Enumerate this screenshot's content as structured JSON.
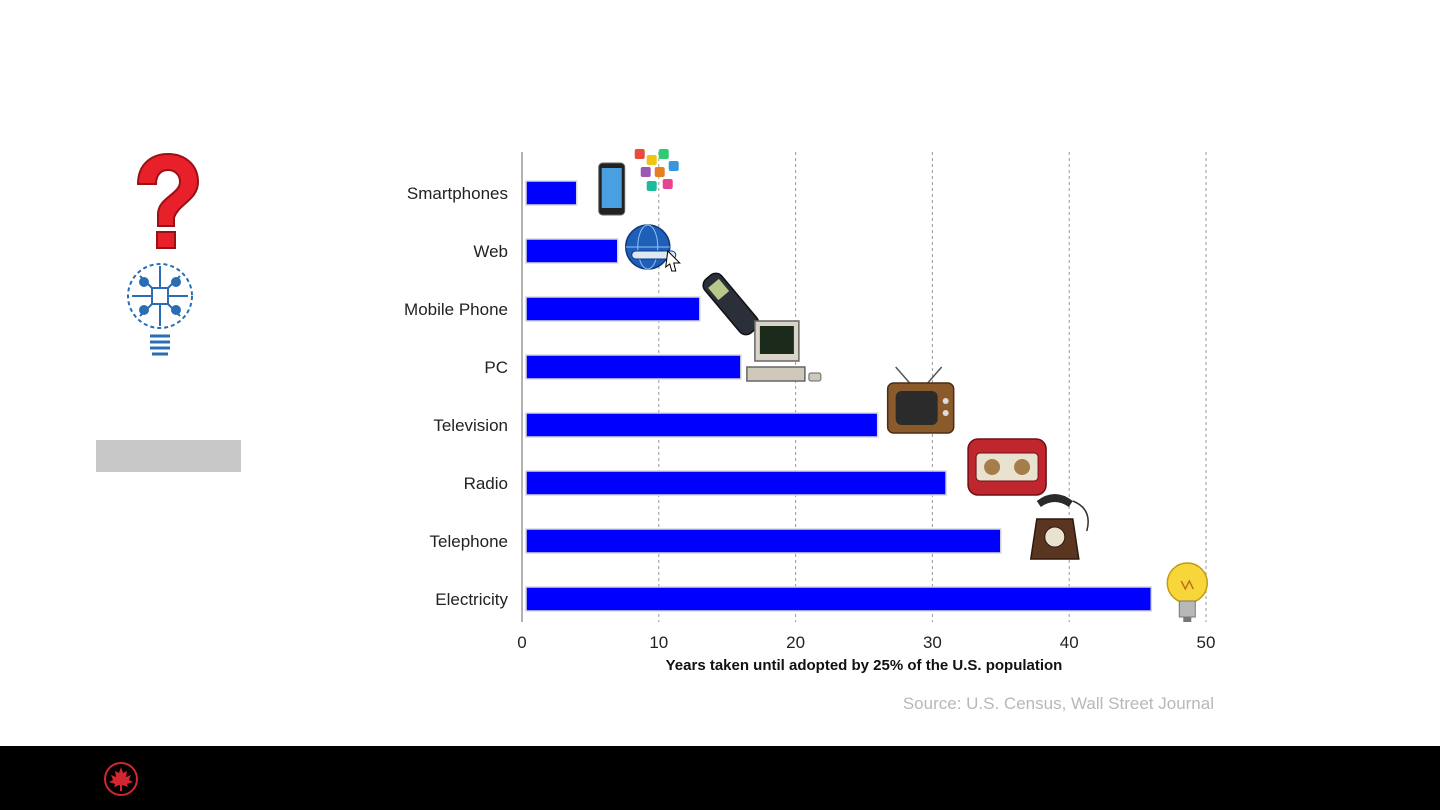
{
  "chart_data": {
    "type": "bar",
    "orientation": "horizontal",
    "categories": [
      "Smartphones",
      "Web",
      "Mobile Phone",
      "PC",
      "Television",
      "Radio",
      "Telephone",
      "Electricity"
    ],
    "values": [
      4,
      7,
      13,
      16,
      26,
      31,
      35,
      46
    ],
    "xlabel": "Years taken until adopted by 25% of the U.S. population",
    "xlim": [
      0,
      50
    ],
    "xticks": [
      0,
      10,
      20,
      30,
      40,
      50
    ],
    "grid": "vertical dashed",
    "bar_color": "#0000ff",
    "source": "Source: U.S. Census, Wall Street Journal"
  },
  "colors": {
    "question_mark": "#e8202a",
    "bulb": "#2a6db5",
    "footer": "#000000",
    "logo": "#d22630",
    "gray_box": "#c8c8c8"
  },
  "icons": {
    "left": [
      "question-mark-icon",
      "circuit-lightbulb-icon"
    ],
    "footer": "maple-leaf-logo-icon",
    "bars": [
      "smartphone-icon",
      "globe-icon",
      "mobile-phone-icon",
      "computer-icon",
      "television-icon",
      "radio-icon",
      "rotary-telephone-icon",
      "light-bulb-icon"
    ]
  }
}
